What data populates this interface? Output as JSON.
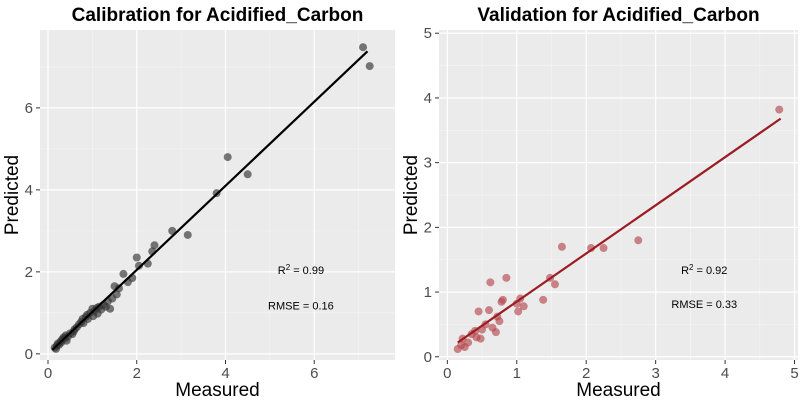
{
  "chart_data": [
    {
      "type": "scatter",
      "title": "Calibration for Acidified_Carbon",
      "xlabel": "Measured",
      "ylabel": "Predicted",
      "xlim": [
        -0.18,
        7.82
      ],
      "ylim": [
        -0.15,
        7.9
      ],
      "xticks": [
        "0",
        "2",
        "4",
        "6"
      ],
      "yticks": [
        "0",
        "2",
        "4",
        "6"
      ],
      "grid": true,
      "point_color": "#333333",
      "line_color": "#000000",
      "fit_line": {
        "x": [
          0.1,
          7.2
        ],
        "y": [
          0.1,
          7.38
        ]
      },
      "annotations": {
        "r2_prefix": "R",
        "r2_sup": "2",
        "r2_value": " = 0.99",
        "rmse": "RMSE = 0.16"
      },
      "annotation_pos": {
        "r2": [
          5.7,
          1.95
        ],
        "rmse": [
          5.7,
          1.08
        ]
      },
      "points": {
        "x": [
          0.15,
          0.18,
          0.2,
          0.22,
          0.25,
          0.28,
          0.3,
          0.32,
          0.35,
          0.38,
          0.4,
          0.42,
          0.45,
          0.5,
          0.55,
          0.58,
          0.6,
          0.65,
          0.7,
          0.75,
          0.78,
          0.8,
          0.85,
          0.88,
          0.9,
          0.95,
          1.0,
          1.02,
          1.05,
          1.1,
          1.12,
          1.15,
          1.2,
          1.25,
          1.3,
          1.35,
          1.4,
          1.45,
          1.5,
          1.55,
          1.6,
          1.7,
          1.8,
          1.9,
          2.0,
          2.05,
          2.25,
          2.35,
          2.4,
          2.8,
          3.15,
          3.8,
          4.05,
          4.5,
          7.1,
          7.25
        ],
        "y": [
          0.15,
          0.12,
          0.2,
          0.25,
          0.22,
          0.3,
          0.28,
          0.35,
          0.4,
          0.38,
          0.45,
          0.32,
          0.42,
          0.5,
          0.48,
          0.55,
          0.6,
          0.65,
          0.72,
          0.78,
          0.85,
          0.75,
          0.9,
          0.95,
          0.85,
          1.0,
          1.1,
          0.92,
          1.05,
          1.12,
          0.98,
          1.15,
          1.08,
          1.2,
          1.15,
          1.28,
          1.1,
          1.35,
          1.65,
          1.45,
          1.6,
          1.95,
          1.75,
          1.85,
          2.35,
          2.15,
          2.2,
          2.5,
          2.65,
          3.0,
          2.9,
          3.92,
          4.8,
          4.38,
          7.48,
          7.02
        ]
      }
    },
    {
      "type": "scatter",
      "title": "Validation for Acidified_Carbon",
      "xlabel": "Measured",
      "ylabel": "Predicted",
      "xlim": [
        -0.12,
        5.05
      ],
      "ylim": [
        -0.05,
        5.05
      ],
      "xticks": [
        "0",
        "1",
        "2",
        "3",
        "4",
        "5"
      ],
      "yticks": [
        "0",
        "1",
        "2",
        "3",
        "4",
        "5"
      ],
      "grid": true,
      "point_color": "#b5484e",
      "line_color": "#9b1c22",
      "fit_line": {
        "x": [
          0.15,
          4.8
        ],
        "y": [
          0.22,
          3.68
        ]
      },
      "annotations": {
        "r2_prefix": "R",
        "r2_sup": "2",
        "r2_value": " = 0.92",
        "rmse": "RMSE = 0.33"
      },
      "annotation_pos": {
        "r2": [
          3.7,
          1.28
        ],
        "rmse": [
          3.7,
          0.75
        ]
      },
      "points": {
        "x": [
          0.15,
          0.2,
          0.22,
          0.25,
          0.3,
          0.35,
          0.4,
          0.42,
          0.45,
          0.48,
          0.5,
          0.55,
          0.6,
          0.62,
          0.65,
          0.7,
          0.72,
          0.75,
          0.78,
          0.8,
          0.85,
          1.0,
          1.02,
          1.05,
          1.1,
          1.38,
          1.48,
          1.55,
          1.65,
          2.07,
          2.25,
          2.75,
          4.78
        ],
        "y": [
          0.12,
          0.18,
          0.28,
          0.15,
          0.22,
          0.35,
          0.4,
          0.3,
          0.7,
          0.28,
          0.42,
          0.5,
          0.72,
          1.15,
          0.45,
          0.38,
          0.62,
          0.55,
          0.85,
          0.88,
          1.22,
          0.82,
          0.7,
          0.9,
          0.78,
          0.88,
          1.22,
          1.12,
          1.7,
          1.68,
          1.68,
          1.8,
          3.82
        ]
      }
    }
  ]
}
